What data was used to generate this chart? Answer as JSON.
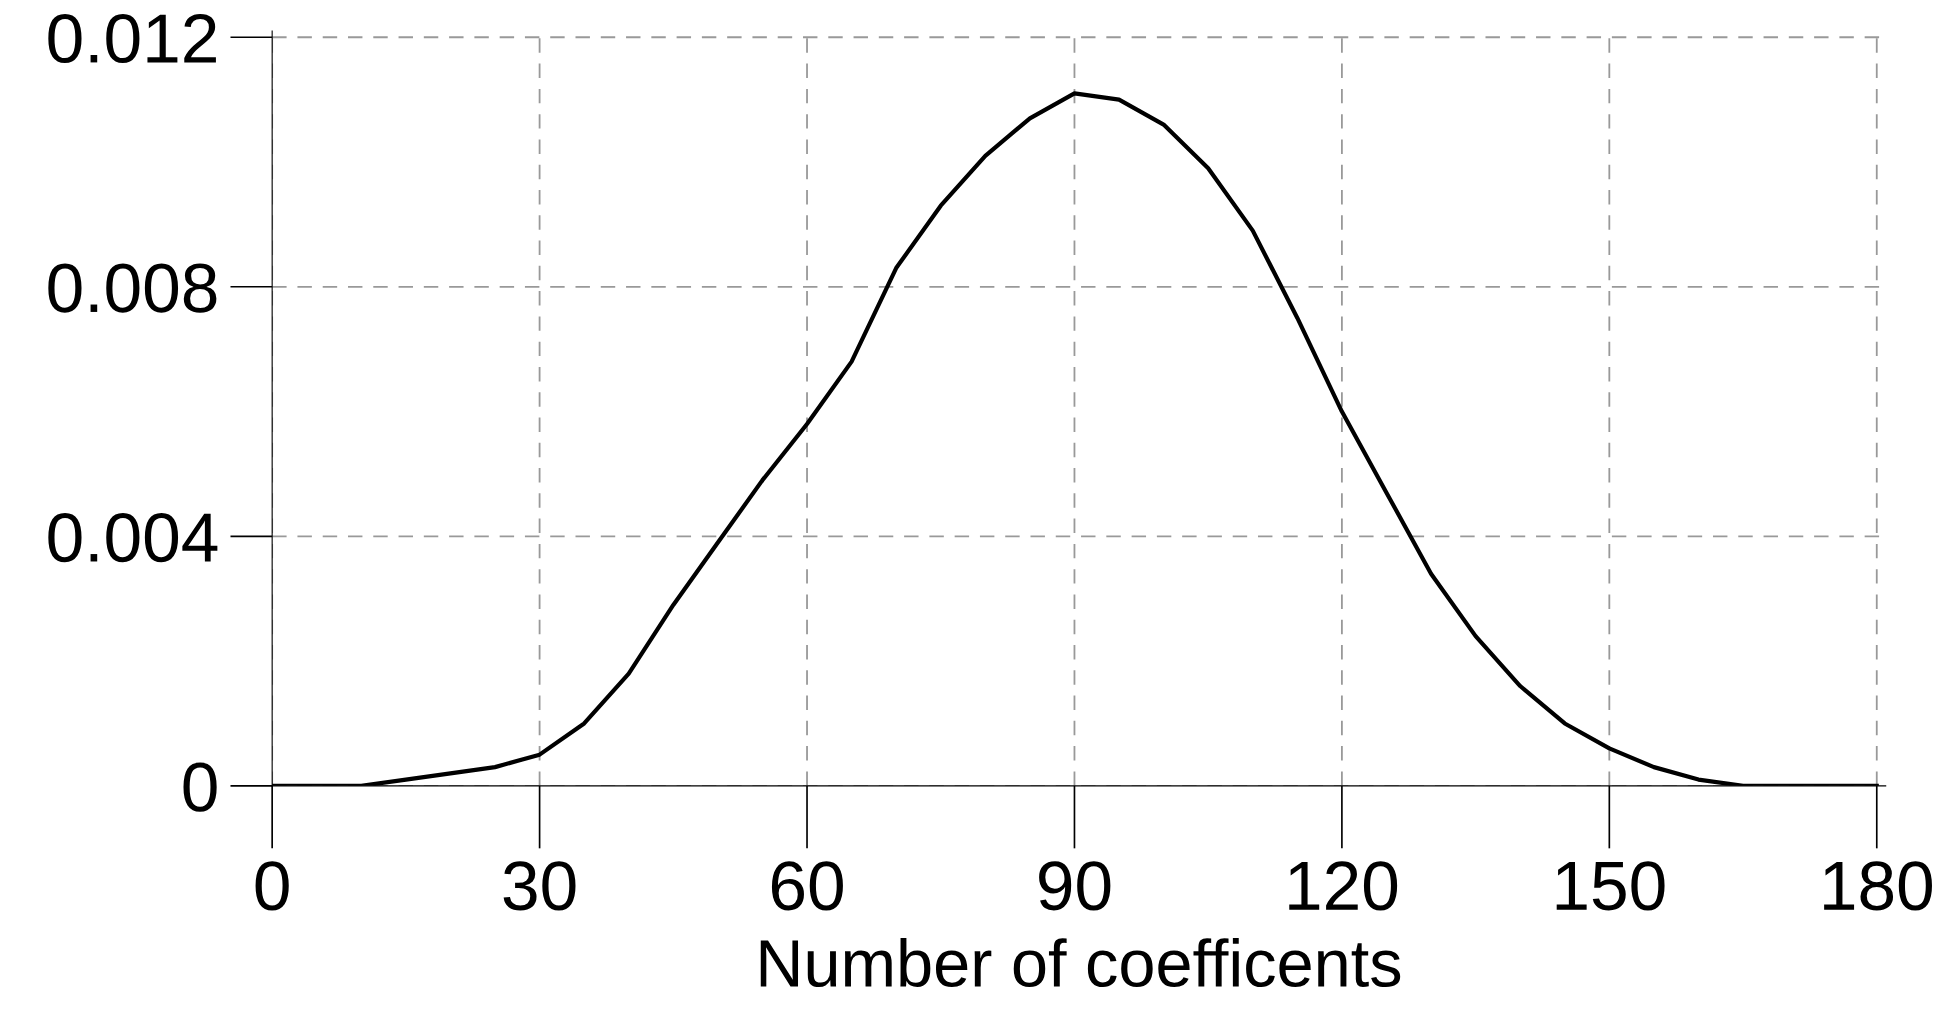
{
  "chart_data": {
    "type": "line",
    "xlabel": "Number of coefficents",
    "x": [
      0,
      10,
      15,
      20,
      25,
      30,
      35,
      40,
      45,
      50,
      55,
      60,
      65,
      70,
      75,
      80,
      85,
      90,
      95,
      100,
      105,
      110,
      115,
      120,
      125,
      130,
      135,
      140,
      145,
      150,
      155,
      160,
      165,
      170,
      180
    ],
    "series": [
      {
        "color": "#000000",
        "values": [
          0,
          0,
          0.0001,
          0.0002,
          0.0003,
          0.0005,
          0.001,
          0.0018,
          0.0029,
          0.0039,
          0.0049,
          0.0058,
          0.0068,
          0.0083,
          0.0093,
          0.0101,
          0.0107,
          0.0111,
          0.011,
          0.0106,
          0.0099,
          0.0089,
          0.0075,
          0.006,
          0.0047,
          0.0034,
          0.0024,
          0.0016,
          0.001,
          0.0006,
          0.0003,
          0.0001,
          0,
          0,
          0
        ]
      }
    ],
    "xlim": [
      0,
      181
    ],
    "ylim": [
      0,
      0.0121
    ],
    "xticks": [
      0,
      30,
      60,
      90,
      120,
      150,
      180
    ],
    "yticks": [
      0,
      0.004,
      0.008,
      0.012
    ],
    "grid": true,
    "line_style": "solid",
    "marker": "none"
  }
}
